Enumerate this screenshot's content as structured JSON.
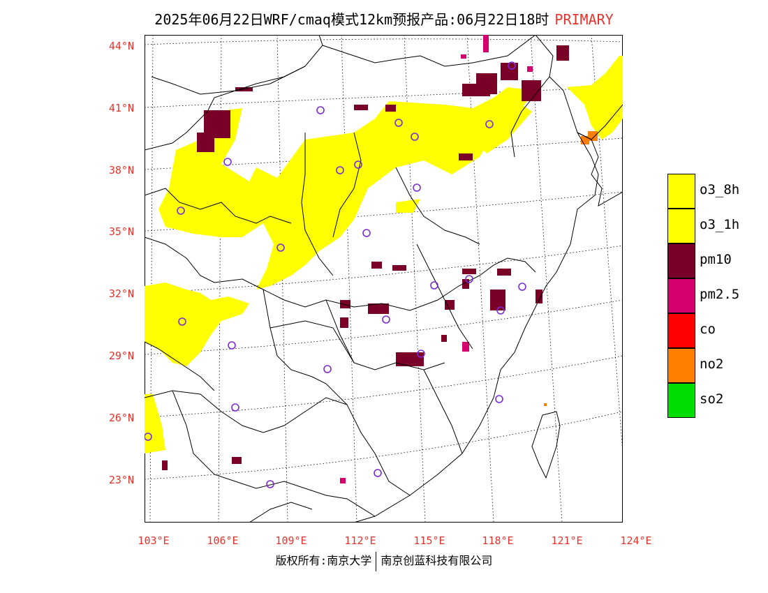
{
  "title": {
    "text": "2025年06月22日WRF/cmaq模式12km预报产品:06月22日18时",
    "tag": "PRIMARY",
    "tag_color": "#e8342c"
  },
  "latitude_labels": [
    "44°N",
    "41°N",
    "38°N",
    "35°N",
    "32°N",
    "29°N",
    "26°N",
    "23°N"
  ],
  "longitude_labels": [
    "103°E",
    "106°E",
    "109°E",
    "112°E",
    "115°E",
    "118°E",
    "121°E",
    "124°E"
  ],
  "legend": [
    {
      "label": "o3_8h",
      "color": "#ffff00"
    },
    {
      "label": "o3_1h",
      "color": "#ffff00"
    },
    {
      "label": "pm10",
      "color": "#7b0028"
    },
    {
      "label": "pm2.5",
      "color": "#d4006e"
    },
    {
      "label": "co",
      "color": "#ff0000"
    },
    {
      "label": "no2",
      "color": "#ff7f00"
    },
    {
      "label": "so2",
      "color": "#00dd00"
    }
  ],
  "footer": {
    "left": "版权所有:南京大学",
    "right": "南京创蓝科技有限公司"
  },
  "colors": {
    "label_red": "#e8342c",
    "station_marker": "#7a2bd6"
  }
}
